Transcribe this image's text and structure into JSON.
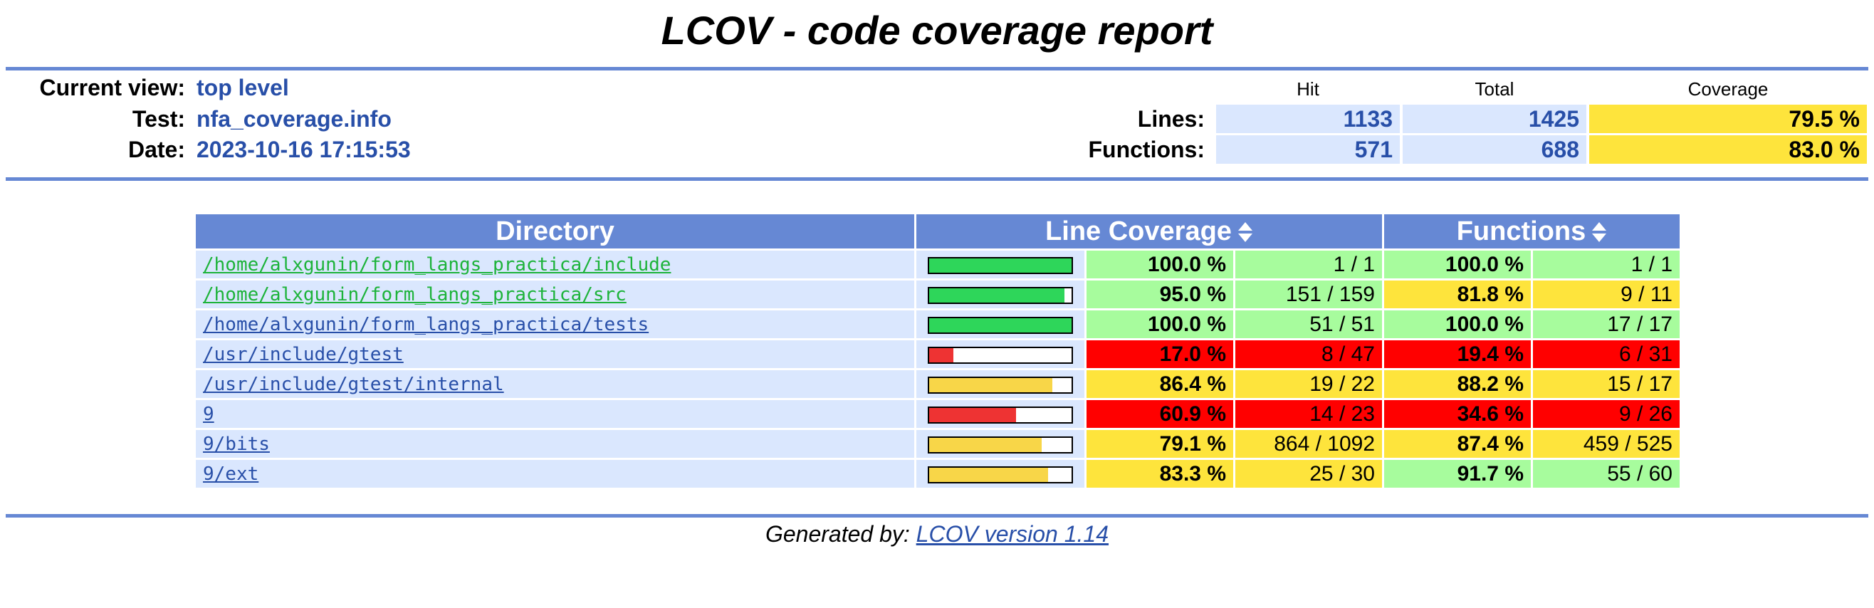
{
  "title": "LCOV - code coverage report",
  "colors": {
    "ruler": "#6688d4",
    "link_blue": "#284fa8",
    "link_green": "#1db33a",
    "bg_light": "#dae7fe",
    "hi": "#a7fc9d",
    "med": "#fee43c",
    "lo": "#ff0000",
    "bar_hi": "#2ed65a",
    "bar_med": "#f8d648",
    "bar_lo": "#ee3333"
  },
  "info": {
    "current_view_label": "Current view:",
    "current_view_value": "top level",
    "test_label": "Test:",
    "test_value": "nfa_coverage.info",
    "date_label": "Date:",
    "date_value": "2023-10-16 17:15:53"
  },
  "summary": {
    "col_hit": "Hit",
    "col_total": "Total",
    "col_coverage": "Coverage",
    "lines": {
      "label": "Lines:",
      "hit": "1133",
      "total": "1425",
      "coverage": "79.5 %"
    },
    "functions": {
      "label": "Functions:",
      "hit": "571",
      "total": "688",
      "coverage": "83.0 %"
    }
  },
  "table": {
    "col_directory": "Directory",
    "col_line_coverage": "Line Coverage",
    "col_functions": "Functions",
    "rows": [
      {
        "dir": "/home/alxgunin/form_langs_practica/include",
        "link": "green",
        "line_fraction": 1.0,
        "line_pct": "100.0 %",
        "line_cnt": "1 / 1",
        "line_level": "hi",
        "func_pct": "100.0 %",
        "func_cnt": "1 / 1",
        "func_level": "hi"
      },
      {
        "dir": "/home/alxgunin/form_langs_practica/src",
        "link": "green",
        "line_fraction": 0.95,
        "line_pct": "95.0 %",
        "line_cnt": "151 / 159",
        "line_level": "hi",
        "func_pct": "81.8 %",
        "func_cnt": "9 / 11",
        "func_level": "med"
      },
      {
        "dir": "/home/alxgunin/form_langs_practica/tests",
        "link": "blue",
        "line_fraction": 1.0,
        "line_pct": "100.0 %",
        "line_cnt": "51 / 51",
        "line_level": "hi",
        "func_pct": "100.0 %",
        "func_cnt": "17 / 17",
        "func_level": "hi"
      },
      {
        "dir": "/usr/include/gtest",
        "link": "blue",
        "line_fraction": 0.17,
        "line_pct": "17.0 %",
        "line_cnt": "8 / 47",
        "line_level": "lo",
        "func_pct": "19.4 %",
        "func_cnt": "6 / 31",
        "func_level": "lo"
      },
      {
        "dir": "/usr/include/gtest/internal",
        "link": "blue",
        "line_fraction": 0.864,
        "line_pct": "86.4 %",
        "line_cnt": "19 / 22",
        "line_level": "med",
        "func_pct": "88.2 %",
        "func_cnt": "15 / 17",
        "func_level": "med"
      },
      {
        "dir": "9",
        "link": "blue",
        "line_fraction": 0.609,
        "line_pct": "60.9 %",
        "line_cnt": "14 / 23",
        "line_level": "lo",
        "func_pct": "34.6 %",
        "func_cnt": "9 / 26",
        "func_level": "lo"
      },
      {
        "dir": "9/bits",
        "link": "blue",
        "line_fraction": 0.791,
        "line_pct": "79.1 %",
        "line_cnt": "864 / 1092",
        "line_level": "med",
        "func_pct": "87.4 %",
        "func_cnt": "459 / 525",
        "func_level": "med"
      },
      {
        "dir": "9/ext",
        "link": "blue",
        "line_fraction": 0.833,
        "line_pct": "83.3 %",
        "line_cnt": "25 / 30",
        "line_level": "med",
        "func_pct": "91.7 %",
        "func_cnt": "55 / 60",
        "func_level": "hi"
      }
    ]
  },
  "footer": {
    "prefix": "Generated by: ",
    "link": "LCOV version 1.14"
  }
}
